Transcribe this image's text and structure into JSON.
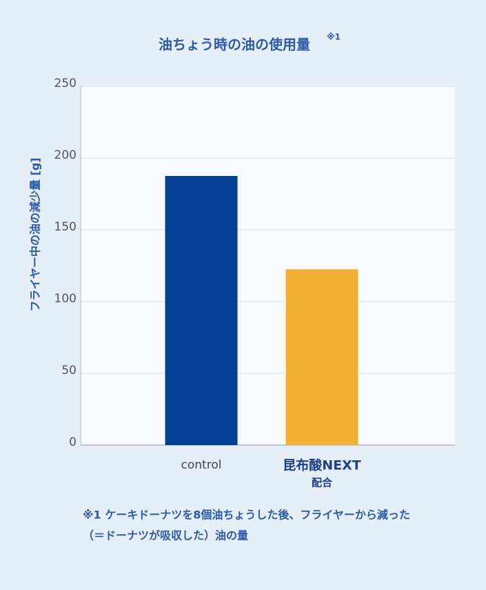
{
  "chart_data": {
    "type": "bar",
    "title": "油ちょう時の油の使用量",
    "title_note": "※1",
    "y_label": "フライヤー中の油の減少量 [g]",
    "categories": [
      "control",
      [
        "昆布酸NEXT",
        "配合"
      ]
    ],
    "values": [
      187.5,
      122.5
    ],
    "colors": [
      "#003f92",
      "#f2b134"
    ],
    "ylim": [
      0,
      250
    ],
    "yticks": [
      0,
      50,
      100,
      150,
      200,
      250
    ],
    "grid": true,
    "footnote": [
      "※1 ケーキドーナツを8個油ちょうした後、フライヤーから減った",
      "（＝ドーナツが吸収した）油の量"
    ]
  }
}
